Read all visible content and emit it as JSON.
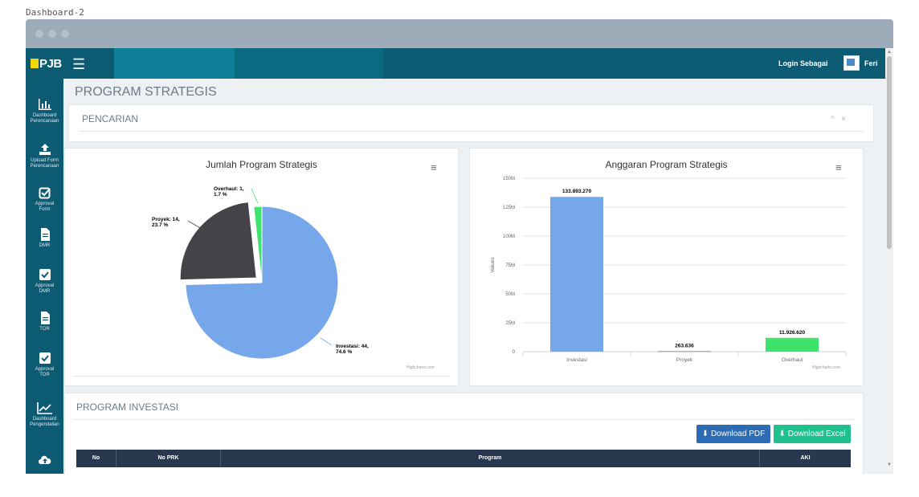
{
  "browser": {
    "tab_title": "Dashboard-2"
  },
  "navbar": {
    "logo_text": "PJB",
    "login_label": "Login Sebagai",
    "user_name": "Feri"
  },
  "sidebar": {
    "items": [
      {
        "icon": "bar-chart-icon",
        "label_line1": "Dashboard",
        "label_line2": "Perencanaan"
      },
      {
        "icon": "upload-icon",
        "label_line1": "Upload Form",
        "label_line2": "Perencanaan"
      },
      {
        "icon": "check-square-outline-icon",
        "label_line1": "Approval",
        "label_line2": "Form"
      },
      {
        "icon": "file-icon",
        "label_line1": "DMR",
        "label_line2": ""
      },
      {
        "icon": "check-square-icon",
        "label_line1": "Approval",
        "label_line2": "DMR"
      },
      {
        "icon": "file-icon",
        "label_line1": "TOR",
        "label_line2": ""
      },
      {
        "icon": "check-square-icon",
        "label_line1": "Approval",
        "label_line2": "TOR"
      },
      {
        "icon": "line-chart-icon",
        "label_line1": "Dashboard",
        "label_line2": "Pengendalian"
      },
      {
        "icon": "cloud-upload-icon",
        "label_line1": "",
        "label_line2": ""
      }
    ]
  },
  "main": {
    "heading": "PROGRAM STRATEGIS",
    "search_panel": {
      "title": "PENCARIAN",
      "collapse_symbol": "^",
      "close_symbol": "×"
    },
    "pie_chart": {
      "menu_symbol": "≡",
      "credit": "Highcharts.com"
    },
    "bar_chart": {
      "menu_symbol": "≡",
      "credit": "Highcharts.com"
    },
    "investasi_panel": {
      "title": "PROGRAM INVESTASI",
      "download_pdf": "Download PDF",
      "download_excel": "Download Excel",
      "columns": [
        "No",
        "No PRK",
        "Program",
        "AKI"
      ]
    }
  },
  "chart_data": [
    {
      "type": "pie",
      "title": "Jumlah Program Strategis",
      "slices": [
        {
          "name": "Investasi",
          "value": 44,
          "percent": 74.6,
          "color": "#76a7ea"
        },
        {
          "name": "Proyek",
          "value": 14,
          "percent": 23.7,
          "color": "#434348"
        },
        {
          "name": "Overhaul",
          "value": 1,
          "percent": 1.7,
          "color": "#3de36b"
        }
      ],
      "data_labels": [
        "Investasi: 44,",
        "74.6 %",
        "Proyek: 14,",
        "23.7 %",
        "Overhaul: 1,",
        "1.7 %"
      ]
    },
    {
      "type": "bar",
      "title": "Anggaran Program Strategis",
      "ylabel": "Values",
      "categories": [
        "Investasi",
        "Proyek",
        "Overhaul"
      ],
      "values": [
        133893270,
        263636,
        11926620
      ],
      "value_labels": [
        "133.893.270",
        "263.636",
        "11.926.620"
      ],
      "colors": [
        "#76a7ea",
        "#434348",
        "#3de36b"
      ],
      "ylim": [
        0,
        150000000
      ],
      "yticks": [
        0,
        25000000,
        50000000,
        75000000,
        100000000,
        125000000,
        150000000
      ],
      "ytick_labels": [
        "0",
        "25M",
        "50M",
        "75M",
        "100M",
        "125M",
        "150M"
      ]
    }
  ]
}
